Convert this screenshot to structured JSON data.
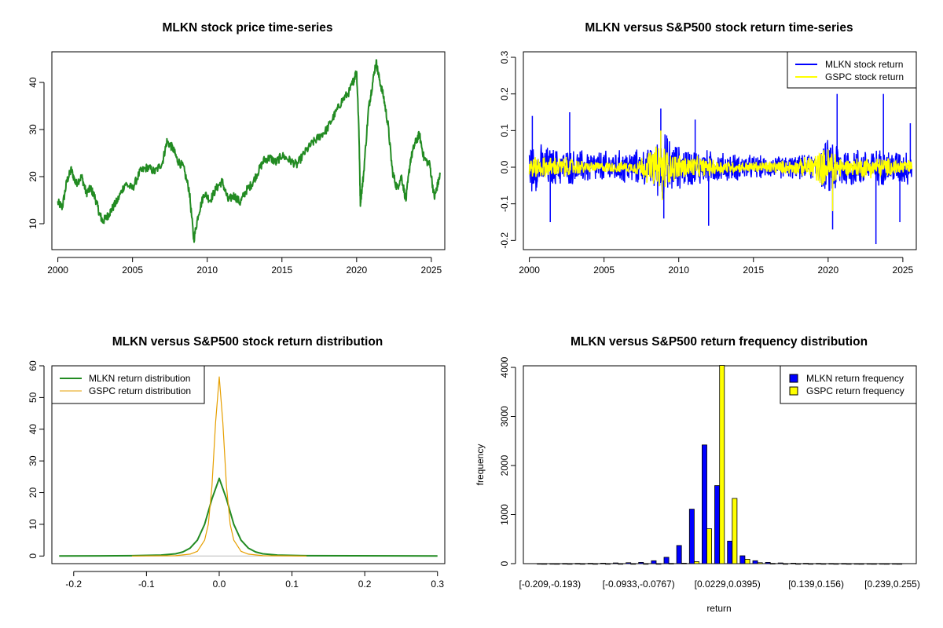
{
  "chart_data": [
    {
      "id": "price",
      "type": "line",
      "title": "MLKN stock price time-series",
      "xlabel": "",
      "ylabel": "",
      "xlim": [
        1999.6,
        2025.9
      ],
      "ylim": [
        4.5,
        46.5
      ],
      "xticks": [
        2000,
        2005,
        2010,
        2015,
        2020,
        2025
      ],
      "xtick_labels": [
        "2000",
        "2005",
        "2010",
        "2015",
        "2020",
        "2025"
      ],
      "yticks": [
        10,
        20,
        30,
        40
      ],
      "ytick_labels": [
        "10",
        "20",
        "30",
        "40"
      ],
      "series": [
        {
          "name": "MLKN price",
          "color": "#228B22",
          "x": [
            2000.0,
            2000.3,
            2000.6,
            2000.9,
            2001.2,
            2001.6,
            2001.9,
            2002.2,
            2002.5,
            2002.8,
            2003.0,
            2003.3,
            2003.6,
            2004.0,
            2004.5,
            2005.0,
            2005.5,
            2006.0,
            2006.5,
            2007.0,
            2007.3,
            2007.7,
            2008.0,
            2008.4,
            2008.8,
            2009.1,
            2009.4,
            2009.8,
            2010.2,
            2010.6,
            2011.0,
            2011.4,
            2011.8,
            2012.2,
            2012.6,
            2013.0,
            2013.4,
            2013.8,
            2014.2,
            2014.6,
            2015.0,
            2015.5,
            2016.0,
            2016.5,
            2017.0,
            2017.5,
            2018.0,
            2018.5,
            2019.0,
            2019.5,
            2019.8,
            2020.0,
            2020.15,
            2020.25,
            2020.45,
            2020.8,
            2021.0,
            2021.3,
            2021.5,
            2021.8,
            2022.1,
            2022.4,
            2022.7,
            2023.0,
            2023.3,
            2023.6,
            2023.9,
            2024.2,
            2024.5,
            2024.9,
            2025.2,
            2025.4,
            2025.6
          ],
          "y": [
            14.5,
            13.5,
            19.0,
            21.5,
            18.5,
            20.0,
            16.5,
            17.5,
            15.5,
            12.0,
            10.5,
            11.5,
            13.0,
            15.0,
            18.5,
            17.5,
            21.0,
            22.0,
            21.0,
            23.0,
            27.5,
            26.0,
            23.5,
            22.0,
            17.0,
            6.5,
            12.0,
            16.5,
            15.0,
            17.5,
            19.0,
            15.0,
            16.0,
            14.5,
            17.0,
            18.5,
            21.0,
            23.5,
            24.0,
            23.0,
            24.5,
            23.5,
            22.5,
            25.0,
            27.0,
            28.5,
            30.0,
            33.0,
            36.0,
            38.0,
            40.5,
            42.5,
            30.0,
            14.5,
            20.0,
            34.5,
            38.5,
            44.5,
            41.0,
            37.0,
            31.0,
            21.0,
            17.5,
            20.0,
            15.0,
            23.5,
            27.0,
            29.0,
            24.0,
            22.5,
            15.5,
            18.0,
            20.5
          ]
        }
      ]
    },
    {
      "id": "returns",
      "type": "line",
      "title": "MLKN versus S&P500 stock return time-series",
      "xlabel": "",
      "ylabel": "",
      "xlim": [
        1999.6,
        2025.9
      ],
      "ylim": [
        -0.225,
        0.315
      ],
      "xticks": [
        2000,
        2005,
        2010,
        2015,
        2020,
        2025
      ],
      "xtick_labels": [
        "2000",
        "2005",
        "2010",
        "2015",
        "2020",
        "2025"
      ],
      "yticks": [
        -0.2,
        -0.1,
        0.0,
        0.1,
        0.2,
        0.3
      ],
      "ytick_labels": [
        "-0.2",
        "-0.1",
        "0.0",
        "0.1",
        "0.2",
        "0.3"
      ],
      "legend": {
        "position": "top-right",
        "entries": [
          "MLKN stock return",
          "GSPC stock return"
        ]
      },
      "series": [
        {
          "name": "MLKN stock return",
          "color": "#0000FF",
          "envelope": [
            [
              2000,
              0.07
            ],
            [
              2002,
              0.05
            ],
            [
              2005,
              0.045
            ],
            [
              2008,
              0.05
            ],
            [
              2009,
              0.1
            ],
            [
              2010,
              0.06
            ],
            [
              2013,
              0.04
            ],
            [
              2016,
              0.03
            ],
            [
              2019,
              0.035
            ],
            [
              2020.3,
              0.09
            ],
            [
              2021,
              0.06
            ],
            [
              2023,
              0.05
            ],
            [
              2025.6,
              0.05
            ]
          ],
          "spikes_up": [
            [
              2000.2,
              0.14
            ],
            [
              2002.7,
              0.15
            ],
            [
              2008.8,
              0.16
            ],
            [
              2011.1,
              0.13
            ],
            [
              2020.6,
              0.2
            ],
            [
              2023.7,
              0.2
            ],
            [
              2025.5,
              0.12
            ]
          ],
          "spikes_down": [
            [
              2001.4,
              -0.15
            ],
            [
              2009.0,
              -0.14
            ],
            [
              2012.0,
              -0.16
            ],
            [
              2020.3,
              -0.17
            ],
            [
              2023.2,
              -0.21
            ],
            [
              2024.8,
              -0.15
            ]
          ]
        },
        {
          "name": "GSPC stock return",
          "color": "#FFFF00",
          "envelope": [
            [
              2000,
              0.03
            ],
            [
              2002.5,
              0.028
            ],
            [
              2004,
              0.015
            ],
            [
              2007,
              0.015
            ],
            [
              2008.8,
              0.07
            ],
            [
              2009.5,
              0.04
            ],
            [
              2011,
              0.03
            ],
            [
              2014,
              0.014
            ],
            [
              2018,
              0.02
            ],
            [
              2020.3,
              0.06
            ],
            [
              2021,
              0.02
            ],
            [
              2022.5,
              0.03
            ],
            [
              2025.6,
              0.02
            ]
          ],
          "spikes_up": [
            [
              2008.8,
              0.1
            ]
          ],
          "spikes_down": [
            [
              2008.9,
              -0.09
            ],
            [
              2020.3,
              -0.12
            ]
          ]
        }
      ]
    },
    {
      "id": "density",
      "type": "line",
      "title": "MLKN versus S&P500 stock return distribution",
      "xlabel": "",
      "ylabel": "",
      "xlim": [
        -0.23,
        0.31
      ],
      "ylim": [
        -2.4,
        60.0
      ],
      "xticks": [
        -0.2,
        -0.1,
        0.0,
        0.1,
        0.2,
        0.3
      ],
      "xtick_labels": [
        "-0.2",
        "-0.1",
        "0.0",
        "0.1",
        "0.2",
        "0.3"
      ],
      "yticks": [
        0,
        10,
        20,
        30,
        40,
        50,
        60
      ],
      "ytick_labels": [
        "0",
        "10",
        "20",
        "30",
        "40",
        "50",
        "60"
      ],
      "legend": {
        "position": "top-left",
        "entries": [
          "MLKN return distribution",
          "GSPC return distribution"
        ]
      },
      "series": [
        {
          "name": "MLKN return distribution",
          "color": "#228B22",
          "x": [
            -0.22,
            -0.12,
            -0.08,
            -0.06,
            -0.05,
            -0.04,
            -0.03,
            -0.02,
            -0.01,
            0.0,
            0.01,
            0.02,
            0.03,
            0.04,
            0.05,
            0.06,
            0.08,
            0.12,
            0.3
          ],
          "y": [
            0,
            0.1,
            0.3,
            0.7,
            1.3,
            2.5,
            5.0,
            10.0,
            18.0,
            24.5,
            18.0,
            10.0,
            5.0,
            2.5,
            1.3,
            0.7,
            0.3,
            0.1,
            0
          ]
        },
        {
          "name": "GSPC return distribution",
          "color": "#E69F00",
          "x": [
            -0.12,
            -0.06,
            -0.04,
            -0.03,
            -0.02,
            -0.015,
            -0.01,
            -0.005,
            0.0,
            0.005,
            0.01,
            0.015,
            0.02,
            0.03,
            0.04,
            0.06,
            0.12
          ],
          "y": [
            0,
            0.1,
            0.6,
            1.5,
            5.0,
            10.0,
            22.0,
            42.0,
            56.5,
            42.0,
            22.0,
            10.0,
            5.0,
            1.5,
            0.6,
            0.1,
            0
          ]
        }
      ]
    },
    {
      "id": "frequency",
      "type": "bar",
      "title": "MLKN versus S&P500 return frequency distribution",
      "xlabel": "return",
      "ylabel": "frequency",
      "ylim": [
        0,
        4000
      ],
      "yticks": [
        0,
        1000,
        2000,
        3000,
        4000
      ],
      "ytick_labels": [
        "0",
        "1000",
        "2000",
        "3000",
        "4000"
      ],
      "xtick_labels": [
        "[-0.209,-0.193)",
        "[-0.0933,-0.0767)",
        "[0.0229,0.0395)",
        "[0.139,0.156)",
        "[0.239,0.255)"
      ],
      "xtick_positions": [
        1,
        8,
        15,
        22,
        28
      ],
      "legend": {
        "position": "top-right",
        "entries": [
          "MLKN return frequency",
          "GSPC return frequency"
        ]
      },
      "categories": 29,
      "series": [
        {
          "name": "MLKN return frequency",
          "color": "#0000FF",
          "values": [
            2,
            2,
            3,
            5,
            6,
            10,
            15,
            20,
            25,
            60,
            130,
            370,
            1110,
            2420,
            1590,
            460,
            160,
            60,
            25,
            15,
            10,
            6,
            5,
            3,
            3,
            2,
            2,
            2,
            1
          ]
        },
        {
          "name": "GSPC return frequency",
          "color": "#FFFF00",
          "values": [
            0,
            0,
            0,
            0,
            0,
            0,
            0,
            0,
            0,
            0,
            5,
            10,
            40,
            710,
            4050,
            1330,
            90,
            20,
            5,
            0,
            0,
            0,
            0,
            0,
            0,
            0,
            0,
            0,
            0
          ]
        }
      ]
    }
  ]
}
